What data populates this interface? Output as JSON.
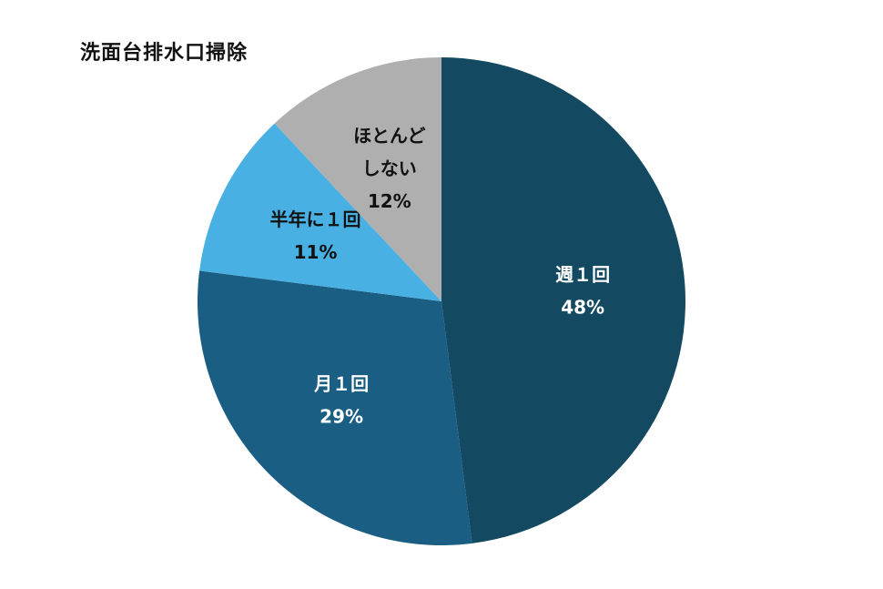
{
  "chart_data": {
    "type": "pie",
    "title": "洗面台排水口掃除",
    "slices": [
      {
        "label": "週１回",
        "label_lines": [
          "週１回"
        ],
        "value": 48,
        "value_label": "48%",
        "color": "#134961",
        "text_color": "#ffffff"
      },
      {
        "label": "月１回",
        "label_lines": [
          "月１回"
        ],
        "value": 29,
        "value_label": "29%",
        "color": "#1a5e83",
        "text_color": "#ffffff"
      },
      {
        "label": "半年に１回",
        "label_lines": [
          "半年に１回"
        ],
        "value": 11,
        "value_label": "11%",
        "color": "#48b0e2",
        "text_color": "#111111"
      },
      {
        "label": "ほとんどしない",
        "label_lines": [
          "ほとんど",
          "しない"
        ],
        "value": 12,
        "value_label": "12%",
        "color": "#afafaf",
        "text_color": "#111111"
      }
    ],
    "start": "12 o'clock",
    "direction": "clockwise",
    "legend": "none"
  }
}
